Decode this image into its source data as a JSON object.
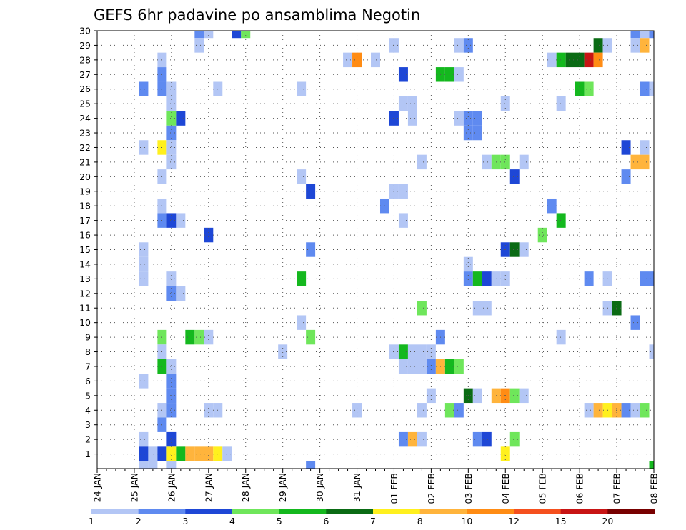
{
  "chart_data": {
    "type": "heatmap",
    "title": "GEFS 6hr padavine po ansamblima Negotin",
    "xlabel": "",
    "ylabel": "",
    "x_tick_labels": [
      "24 JAN",
      "25 JAN",
      "26 JAN",
      "27 JAN",
      "28 JAN",
      "29 JAN",
      "30 JAN",
      "31 JAN",
      "01 FEB",
      "02 FEB",
      "03 FEB",
      "04 FEB",
      "05 FEB",
      "06 FEB",
      "07 FEB",
      "08 FEB"
    ],
    "y_tick_labels": [
      "1",
      "2",
      "3",
      "4",
      "5",
      "6",
      "7",
      "8",
      "9",
      "10",
      "11",
      "12",
      "13",
      "14",
      "15",
      "16",
      "17",
      "18",
      "19",
      "20",
      "21",
      "22",
      "23",
      "24",
      "25",
      "26",
      "27",
      "28",
      "29",
      "30"
    ],
    "x_range_days": [
      0,
      15
    ],
    "y_range_members": [
      0,
      30
    ],
    "step_hours": 6,
    "grid": true,
    "colorbar": {
      "labels": [
        "1",
        "2",
        "3",
        "4",
        "5",
        "6",
        "7",
        "8",
        "10",
        "12",
        "15",
        "20"
      ],
      "colors": [
        "#b3c6f5",
        "#5f8af0",
        "#1e47d6",
        "#6fe65b",
        "#14b81e",
        "#0a6b14",
        "#fff01e",
        "#ffb43c",
        "#ff8c14",
        "#f5501e",
        "#c81414",
        "#780000"
      ]
    },
    "cells_note": "each cell = [member, 6-hour step index from 24 JAN 00Z, precipitation class 1-12]",
    "cells": [
      [
        30,
        11,
        2
      ],
      [
        30,
        12,
        1
      ],
      [
        30,
        15,
        3
      ],
      [
        30,
        16,
        4
      ],
      [
        30,
        59,
        1
      ],
      [
        30,
        60,
        2
      ],
      [
        30,
        58,
        2
      ],
      [
        29,
        11,
        1
      ],
      [
        29,
        32,
        1
      ],
      [
        29,
        39,
        1
      ],
      [
        29,
        40,
        2
      ],
      [
        29,
        54,
        6
      ],
      [
        29,
        55,
        1
      ],
      [
        29,
        58,
        1
      ],
      [
        29,
        59,
        8
      ],
      [
        28,
        7,
        1
      ],
      [
        28,
        27,
        1
      ],
      [
        28,
        28,
        9
      ],
      [
        28,
        30,
        1
      ],
      [
        28,
        49,
        1
      ],
      [
        28,
        50,
        5
      ],
      [
        28,
        51,
        6
      ],
      [
        28,
        52,
        6
      ],
      [
        28,
        53,
        11
      ],
      [
        28,
        54,
        9
      ],
      [
        27,
        7,
        2
      ],
      [
        27,
        33,
        3
      ],
      [
        27,
        37,
        5
      ],
      [
        27,
        38,
        5
      ],
      [
        27,
        39,
        1
      ],
      [
        26,
        5,
        2
      ],
      [
        26,
        7,
        2
      ],
      [
        26,
        8,
        1
      ],
      [
        26,
        13,
        1
      ],
      [
        26,
        22,
        1
      ],
      [
        26,
        52,
        5
      ],
      [
        26,
        53,
        4
      ],
      [
        26,
        59,
        2
      ],
      [
        26,
        60,
        1
      ],
      [
        25,
        8,
        1
      ],
      [
        25,
        33,
        1
      ],
      [
        25,
        34,
        1
      ],
      [
        25,
        44,
        1
      ],
      [
        25,
        50,
        1
      ],
      [
        24,
        8,
        4
      ],
      [
        24,
        9,
        3
      ],
      [
        24,
        32,
        3
      ],
      [
        24,
        34,
        1
      ],
      [
        24,
        39,
        1
      ],
      [
        24,
        40,
        2
      ],
      [
        24,
        41,
        2
      ],
      [
        23,
        8,
        2
      ],
      [
        23,
        40,
        2
      ],
      [
        23,
        41,
        2
      ],
      [
        22,
        5,
        1
      ],
      [
        22,
        7,
        7
      ],
      [
        22,
        8,
        1
      ],
      [
        22,
        57,
        3
      ],
      [
        22,
        59,
        1
      ],
      [
        21,
        8,
        1
      ],
      [
        21,
        35,
        1
      ],
      [
        21,
        42,
        1
      ],
      [
        21,
        43,
        4
      ],
      [
        21,
        44,
        4
      ],
      [
        21,
        46,
        1
      ],
      [
        21,
        58,
        8
      ],
      [
        21,
        59,
        8
      ],
      [
        20,
        7,
        1
      ],
      [
        20,
        22,
        1
      ],
      [
        20,
        45,
        3
      ],
      [
        20,
        57,
        2
      ],
      [
        19,
        23,
        3
      ],
      [
        19,
        32,
        1
      ],
      [
        19,
        33,
        1
      ],
      [
        18,
        7,
        1
      ],
      [
        18,
        31,
        2
      ],
      [
        18,
        49,
        2
      ],
      [
        17,
        7,
        2
      ],
      [
        17,
        8,
        3
      ],
      [
        17,
        9,
        1
      ],
      [
        17,
        33,
        1
      ],
      [
        17,
        50,
        5
      ],
      [
        16,
        12,
        3
      ],
      [
        16,
        48,
        4
      ],
      [
        15,
        5,
        1
      ],
      [
        15,
        23,
        2
      ],
      [
        15,
        44,
        3
      ],
      [
        15,
        45,
        6
      ],
      [
        15,
        46,
        1
      ],
      [
        14,
        5,
        1
      ],
      [
        14,
        40,
        1
      ],
      [
        13,
        5,
        1
      ],
      [
        13,
        8,
        1
      ],
      [
        13,
        22,
        5
      ],
      [
        13,
        40,
        2
      ],
      [
        13,
        41,
        5
      ],
      [
        13,
        42,
        3
      ],
      [
        13,
        43,
        1
      ],
      [
        13,
        44,
        1
      ],
      [
        13,
        53,
        2
      ],
      [
        13,
        55,
        1
      ],
      [
        13,
        59,
        2
      ],
      [
        13,
        60,
        2
      ],
      [
        12,
        8,
        2
      ],
      [
        12,
        9,
        1
      ],
      [
        11,
        35,
        4
      ],
      [
        11,
        41,
        1
      ],
      [
        11,
        42,
        1
      ],
      [
        11,
        55,
        1
      ],
      [
        11,
        56,
        6
      ],
      [
        10,
        22,
        1
      ],
      [
        10,
        58,
        2
      ],
      [
        9,
        7,
        4
      ],
      [
        9,
        10,
        5
      ],
      [
        9,
        11,
        4
      ],
      [
        9,
        12,
        1
      ],
      [
        9,
        23,
        4
      ],
      [
        9,
        37,
        2
      ],
      [
        9,
        50,
        1
      ],
      [
        8,
        7,
        1
      ],
      [
        8,
        20,
        1
      ],
      [
        8,
        32,
        1
      ],
      [
        8,
        33,
        5
      ],
      [
        8,
        34,
        1
      ],
      [
        8,
        35,
        1
      ],
      [
        8,
        36,
        1
      ],
      [
        8,
        60,
        1
      ],
      [
        7,
        7,
        5
      ],
      [
        7,
        8,
        1
      ],
      [
        7,
        33,
        1
      ],
      [
        7,
        34,
        1
      ],
      [
        7,
        35,
        1
      ],
      [
        7,
        36,
        2
      ],
      [
        7,
        37,
        8
      ],
      [
        7,
        38,
        5
      ],
      [
        7,
        39,
        4
      ],
      [
        6,
        5,
        1
      ],
      [
        6,
        8,
        2
      ],
      [
        5,
        8,
        2
      ],
      [
        5,
        36,
        1
      ],
      [
        5,
        40,
        6
      ],
      [
        5,
        41,
        1
      ],
      [
        5,
        43,
        8
      ],
      [
        5,
        44,
        9
      ],
      [
        5,
        45,
        4
      ],
      [
        5,
        46,
        1
      ],
      [
        4,
        7,
        1
      ],
      [
        4,
        8,
        2
      ],
      [
        4,
        12,
        1
      ],
      [
        4,
        13,
        1
      ],
      [
        4,
        28,
        1
      ],
      [
        4,
        35,
        1
      ],
      [
        4,
        38,
        4
      ],
      [
        4,
        39,
        2
      ],
      [
        4,
        53,
        1
      ],
      [
        4,
        54,
        8
      ],
      [
        4,
        55,
        7
      ],
      [
        4,
        56,
        8
      ],
      [
        4,
        57,
        2
      ],
      [
        4,
        58,
        1
      ],
      [
        4,
        59,
        4
      ],
      [
        3,
        7,
        2
      ],
      [
        2,
        5,
        1
      ],
      [
        2,
        8,
        3
      ],
      [
        2,
        33,
        2
      ],
      [
        2,
        34,
        8
      ],
      [
        2,
        35,
        1
      ],
      [
        2,
        41,
        2
      ],
      [
        2,
        42,
        3
      ],
      [
        2,
        45,
        4
      ],
      [
        1,
        5,
        3
      ],
      [
        1,
        6,
        1
      ],
      [
        1,
        7,
        3
      ],
      [
        1,
        8,
        7
      ],
      [
        1,
        9,
        5
      ],
      [
        1,
        10,
        8
      ],
      [
        1,
        11,
        8
      ],
      [
        1,
        12,
        8
      ],
      [
        1,
        13,
        7
      ],
      [
        1,
        14,
        1
      ],
      [
        1,
        44,
        7
      ],
      [
        0,
        5,
        1
      ],
      [
        0,
        6,
        1
      ],
      [
        0,
        8,
        1
      ],
      [
        0,
        23,
        2
      ],
      [
        0,
        60,
        5
      ]
    ]
  }
}
